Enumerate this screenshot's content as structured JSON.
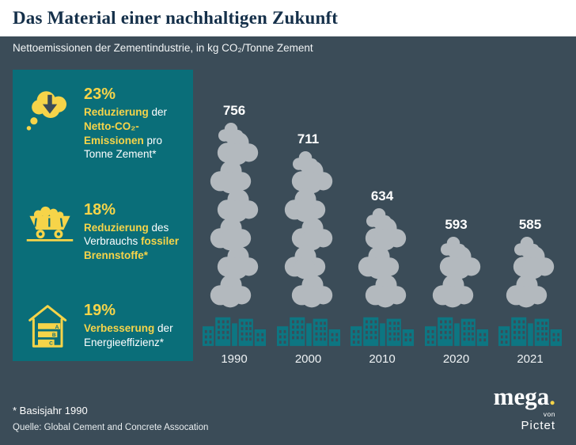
{
  "header": {
    "title": "Das Material einer nachhaltigen Zukunft"
  },
  "subtitle": "Nettoemissionen der Zementindustrie, in kg CO₂/Tonne Zement",
  "panel": {
    "stats": [
      {
        "pct": "23%",
        "icon": "cloud-down-arrow",
        "segments": [
          {
            "t": "Reduzierung ",
            "a": true
          },
          {
            "t": "der ",
            "a": false
          },
          {
            "t": "Netto-CO₂-Emissionen ",
            "a": true
          },
          {
            "t": "pro Tonne Zement*",
            "a": false
          }
        ]
      },
      {
        "pct": "18%",
        "icon": "coal-cart",
        "segments": [
          {
            "t": "Reduzierung ",
            "a": true
          },
          {
            "t": "des Verbrauchs ",
            "a": false
          },
          {
            "t": "fossiler Brennstoffe*",
            "a": true
          }
        ]
      },
      {
        "pct": "19%",
        "icon": "house-energy",
        "energy_labels": [
          "A",
          "B",
          "C"
        ],
        "segments": [
          {
            "t": "Verbesserung ",
            "a": true
          },
          {
            "t": "der Energieeffizienz*",
            "a": false
          }
        ]
      }
    ]
  },
  "chart_data": {
    "type": "bar",
    "title": "Nettoemissionen der Zementindustrie, in kg CO₂/Tonne Zement",
    "categories": [
      "1990",
      "2000",
      "2010",
      "2020",
      "2021"
    ],
    "values": [
      756,
      711,
      634,
      593,
      585
    ],
    "unit": "kg CO₂/Tonne Zement",
    "ylim": [
      500,
      780
    ],
    "legend": "none",
    "grid": false
  },
  "footer": {
    "footnote": "*  Basisjahr 1990",
    "source": "Quelle: Global Cement and Concrete Assocation",
    "logo": {
      "brand": "mega",
      "dot": ".",
      "sub1": "von",
      "sub2": "Pictet"
    }
  },
  "colors": {
    "background": "#3b4c58",
    "header_bg": "#ffffff",
    "title_navy": "#15304a",
    "panel_teal": "#0a6e79",
    "accent_yellow": "#f6d449",
    "cloud_gray": "#b3b9be",
    "factory_teal": "#0d7682",
    "text_white": "#ffffff"
  }
}
